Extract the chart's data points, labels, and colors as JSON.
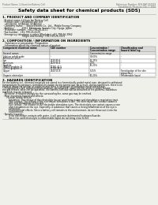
{
  "bg_color": "#f0f0eb",
  "header_left": "Product Name: Lithium Ion Battery Cell",
  "header_right_line1": "Reference Number: SDS-BAT-000018",
  "header_right_line2": "Established / Revision: Dec.7 2016",
  "main_title": "Safety data sheet for chemical products (SDS)",
  "section1_title": "1. PRODUCT AND COMPANY IDENTIFICATION",
  "s1_lines": [
    " · Product name: Lithium Ion Battery Cell",
    " · Product code: Cylindrical-type cell",
    "    (BY-86000, SY-86500, SY-86504)",
    " · Company name:     Sanyo Electric Co., Ltd.,  Mobile Energy Company",
    " · Address:           2001  Kamimura, Sumoto City, Hyogo, Japan",
    " · Telephone number:  +81-799-26-4111",
    " · Fax number:  +81-799-26-4129",
    " · Emergency telephone number (Weekday) +81-799-26-3962",
    "                             (Night and holiday) +81-799-26-3101"
  ],
  "section2_title": "2. COMPOSITION / INFORMATION ON INGREDIENTS",
  "s2_line1": "  · Substance or preparation: Preparation",
  "s2_line2": "  · Information about the chemical nature of product:",
  "th_component": "Component chemical name",
  "th_cas": "CAS number",
  "th_conc": "Concentration /\nConcentration range",
  "th_class": "Classification and\nhazard labeling",
  "table_rows": [
    [
      "Several names",
      "",
      "Concentration range",
      ""
    ],
    [
      "Lithium cobalt oxide\n(LiMnxCo(1-x)O2)",
      "-",
      "30-60%",
      "-"
    ],
    [
      "Iron\nAluminum",
      "7439-89-6\n7429-90-5",
      "15-25%\n2.5%",
      "-\n-"
    ],
    [
      "Graphite\n(Mixed graphite-1)\n(LiMnx graphite-1)",
      "-\n17782-42-5\n17782-44-0",
      "10-20%",
      "-"
    ],
    [
      "Copper",
      "7440-50-8",
      "5-15%",
      "Sensitization of the skin\ngroup No.2"
    ],
    [
      "Organic electrolyte",
      "-",
      "10-20%",
      "Inflammable liquid"
    ]
  ],
  "section3_title": "3. HAZARDS IDENTIFICATION",
  "s3_lines": [
    "For the battery cell, chemical materials are stored in a hermetically sealed metal case, designed to withstand",
    "temperatures by pressure-controlled-circulation during normal use. As a result, during normal use, there is no",
    "physical danger of ignition or explosion and there is no danger of hazardous materials leakage.",
    "   If exposed to a fire, added mechanical shock, decomposed, under electric shock or heavy misuse,",
    "the gas release valve can be operated. The battery cell case will be breached or fire patterns, hazardous",
    "materials may be released.",
    "   Moreover, if heated strongly by the surrounding fire, some gas may be emitted."
  ],
  "s3_bullet1": " · Most important hazard and effects:",
  "s3_human": "    Human health effects:",
  "s3_human_lines": [
    "       Inhalation: The release of the electrolyte has an anesthesia action and stimulates a respiratory tract.",
    "       Skin contact: The release of the electrolyte stimulates a skin. The electrolyte skin contact causes a",
    "       sore and stimulation on the skin.",
    "       Eye contact: The release of the electrolyte stimulates eyes. The electrolyte eye contact causes a sore",
    "       and stimulation on the eye. Especially, a substance that causes a strong inflammation of the eye is",
    "       contained.",
    "       Environmental effects: Since a battery cell remains in the environment, do not throw out it into the",
    "       environment."
  ],
  "s3_bullet2": " · Specific hazards:",
  "s3_specific_lines": [
    "       If the electrolyte contacts with water, it will generate detrimental hydrogen fluoride.",
    "       Since the used electrolyte is inflammable liquid, do not bring close to fire."
  ]
}
